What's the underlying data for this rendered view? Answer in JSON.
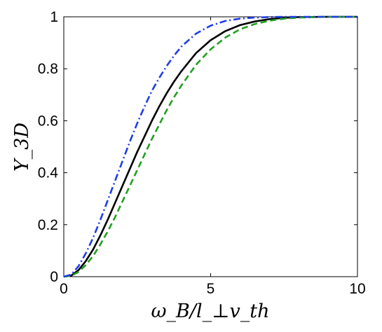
{
  "chart_data": {
    "type": "line",
    "title": "",
    "xlabel": "ω_B/l_⊥v_th",
    "ylabel": "Y_3D",
    "xlim": [
      0,
      10
    ],
    "ylim": [
      0,
      1
    ],
    "x_ticks": [
      "0",
      "5",
      "10"
    ],
    "y_ticks": [
      "0",
      "0.2",
      "0.4",
      "0.6",
      "0.8",
      "1"
    ],
    "grid": false,
    "legend": "none",
    "series": [
      {
        "style": "solid",
        "color": "#000000",
        "x": [
          0,
          0.25,
          0.5,
          0.75,
          1.0,
          1.25,
          1.5,
          1.75,
          2.0,
          2.25,
          2.5,
          2.75,
          3.0,
          3.25,
          3.5,
          3.75,
          4.0,
          4.5,
          5.0,
          5.5,
          6.0,
          6.5,
          7.0,
          7.5,
          8.0,
          9.0,
          10.0
        ],
        "values": [
          0,
          0.004,
          0.025,
          0.06,
          0.105,
          0.16,
          0.22,
          0.285,
          0.35,
          0.415,
          0.48,
          0.54,
          0.6,
          0.655,
          0.705,
          0.75,
          0.79,
          0.86,
          0.91,
          0.945,
          0.968,
          0.982,
          0.991,
          0.996,
          0.999,
          1.0,
          1.0
        ]
      },
      {
        "style": "dashed",
        "color": "#22a022",
        "x": [
          0,
          0.25,
          0.5,
          0.75,
          1.0,
          1.25,
          1.5,
          1.75,
          2.0,
          2.25,
          2.5,
          2.75,
          3.0,
          3.25,
          3.5,
          3.75,
          4.0,
          4.5,
          5.0,
          5.5,
          6.0,
          6.5,
          7.0,
          7.5,
          8.0,
          9.0,
          10.0
        ],
        "values": [
          0,
          0.003,
          0.018,
          0.045,
          0.08,
          0.125,
          0.175,
          0.23,
          0.29,
          0.35,
          0.41,
          0.47,
          0.53,
          0.585,
          0.64,
          0.69,
          0.735,
          0.815,
          0.875,
          0.92,
          0.952,
          0.972,
          0.985,
          0.993,
          0.997,
          1.0,
          1.0
        ]
      },
      {
        "style": "dashdot",
        "color": "#1f3de8",
        "x": [
          0,
          0.25,
          0.5,
          0.75,
          1.0,
          1.25,
          1.5,
          1.75,
          2.0,
          2.25,
          2.5,
          2.75,
          3.0,
          3.25,
          3.5,
          3.75,
          4.0,
          4.5,
          5.0,
          5.5,
          6.0,
          6.5,
          7.0,
          7.5,
          8.0,
          9.0,
          10.0
        ],
        "values": [
          0,
          0.008,
          0.04,
          0.09,
          0.15,
          0.22,
          0.295,
          0.37,
          0.445,
          0.52,
          0.59,
          0.655,
          0.715,
          0.765,
          0.81,
          0.85,
          0.885,
          0.935,
          0.966,
          0.984,
          0.993,
          0.997,
          0.999,
          1.0,
          1.0,
          1.0,
          1.0
        ]
      }
    ]
  }
}
